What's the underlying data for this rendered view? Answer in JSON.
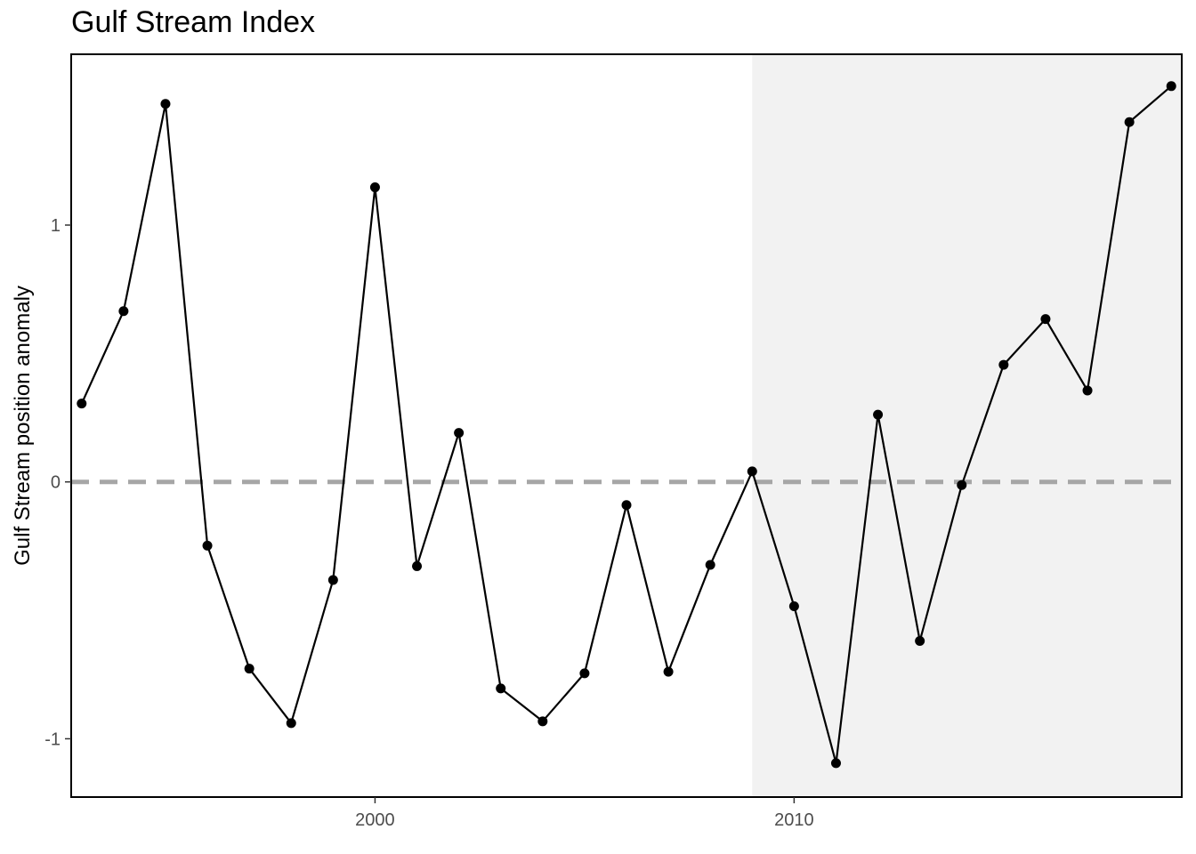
{
  "chart_data": {
    "type": "line",
    "title": "Gulf Stream Index",
    "xlabel": "",
    "ylabel": "Gulf Stream position anomaly",
    "x": [
      1993,
      1994,
      1995,
      1996,
      1997,
      1998,
      1999,
      2000,
      2001,
      2002,
      2003,
      2004,
      2005,
      2006,
      2007,
      2008,
      2009,
      2010,
      2011,
      2012,
      2013,
      2014,
      2015,
      2016,
      2017,
      2018,
      2019
    ],
    "series": [
      {
        "values": [
          0.305,
          0.665,
          1.472,
          -0.248,
          -0.727,
          -0.939,
          -0.382,
          1.147,
          -0.328,
          0.191,
          -0.804,
          -0.932,
          -0.745,
          -0.09,
          -0.739,
          -0.323,
          0.041,
          -0.484,
          -1.095,
          0.262,
          -0.619,
          -0.012,
          0.456,
          0.634,
          0.356,
          1.401,
          1.541
        ]
      }
    ],
    "xticks": [
      2000,
      2010
    ],
    "xtick_labels": [
      "2000",
      "2010"
    ],
    "yticks": [
      -1,
      0,
      1
    ],
    "ytick_labels": [
      "-1",
      "0",
      "1"
    ],
    "xlim": [
      1992.75,
      2019.25
    ],
    "ylim": [
      -1.227,
      1.665
    ],
    "reference_line": {
      "y": 0,
      "style": "dashed",
      "color": "#a6a6a6"
    },
    "shaded_region": {
      "x_start": 2009,
      "x_end": 2019.25,
      "color": "#f2f2f2"
    },
    "line_color": "#000000",
    "grid": false,
    "legend": "none"
  }
}
